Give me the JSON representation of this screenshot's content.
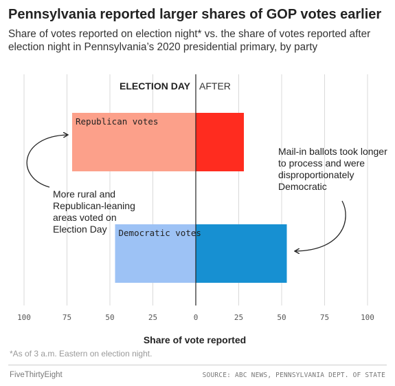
{
  "chart_data": {
    "type": "bar",
    "title": "Pennsylvania reported larger shares of GOP votes earlier",
    "subtitle": "Share of votes reported on election night* vs. the share of votes reported after election night in Pennsylvania’s 2020 presidential primary, by party",
    "xlabel": "Share of vote reported",
    "xlim": [
      -100,
      100
    ],
    "ticks": [
      -100,
      -75,
      -50,
      -25,
      0,
      25,
      50,
      75,
      100
    ],
    "tick_labels": [
      "100",
      "75",
      "50",
      "25",
      "0",
      "25",
      "50",
      "75",
      "100"
    ],
    "side_labels": {
      "left": "ELECTION DAY",
      "right": "AFTER"
    },
    "series_names": [
      "ELECTION DAY",
      "AFTER"
    ],
    "categories": [
      "Republican votes",
      "Democratic votes"
    ],
    "series": [
      {
        "name": "ELECTION DAY",
        "values": [
          72,
          47
        ]
      },
      {
        "name": "AFTER",
        "values": [
          28,
          53
        ]
      }
    ],
    "colors": {
      "Republican votes": {
        "election_day": "#fca08a",
        "after": "#ff2c1f"
      },
      "Democratic votes": {
        "election_day": "#9dc2f5",
        "after": "#1790d2"
      }
    },
    "grid": true,
    "annotations": [
      {
        "text": "More rural and Republican-leaning areas voted on Election Day"
      },
      {
        "text": "Mail-in ballots took longer to process and were disproportionately Democratic"
      }
    ]
  },
  "footnote": "*As of 3 a.m. Eastern on election night.",
  "brand": "FiveThirtyEight",
  "source": "SOURCE: ABC NEWS, PENNSYLVANIA DEPT. OF STATE"
}
